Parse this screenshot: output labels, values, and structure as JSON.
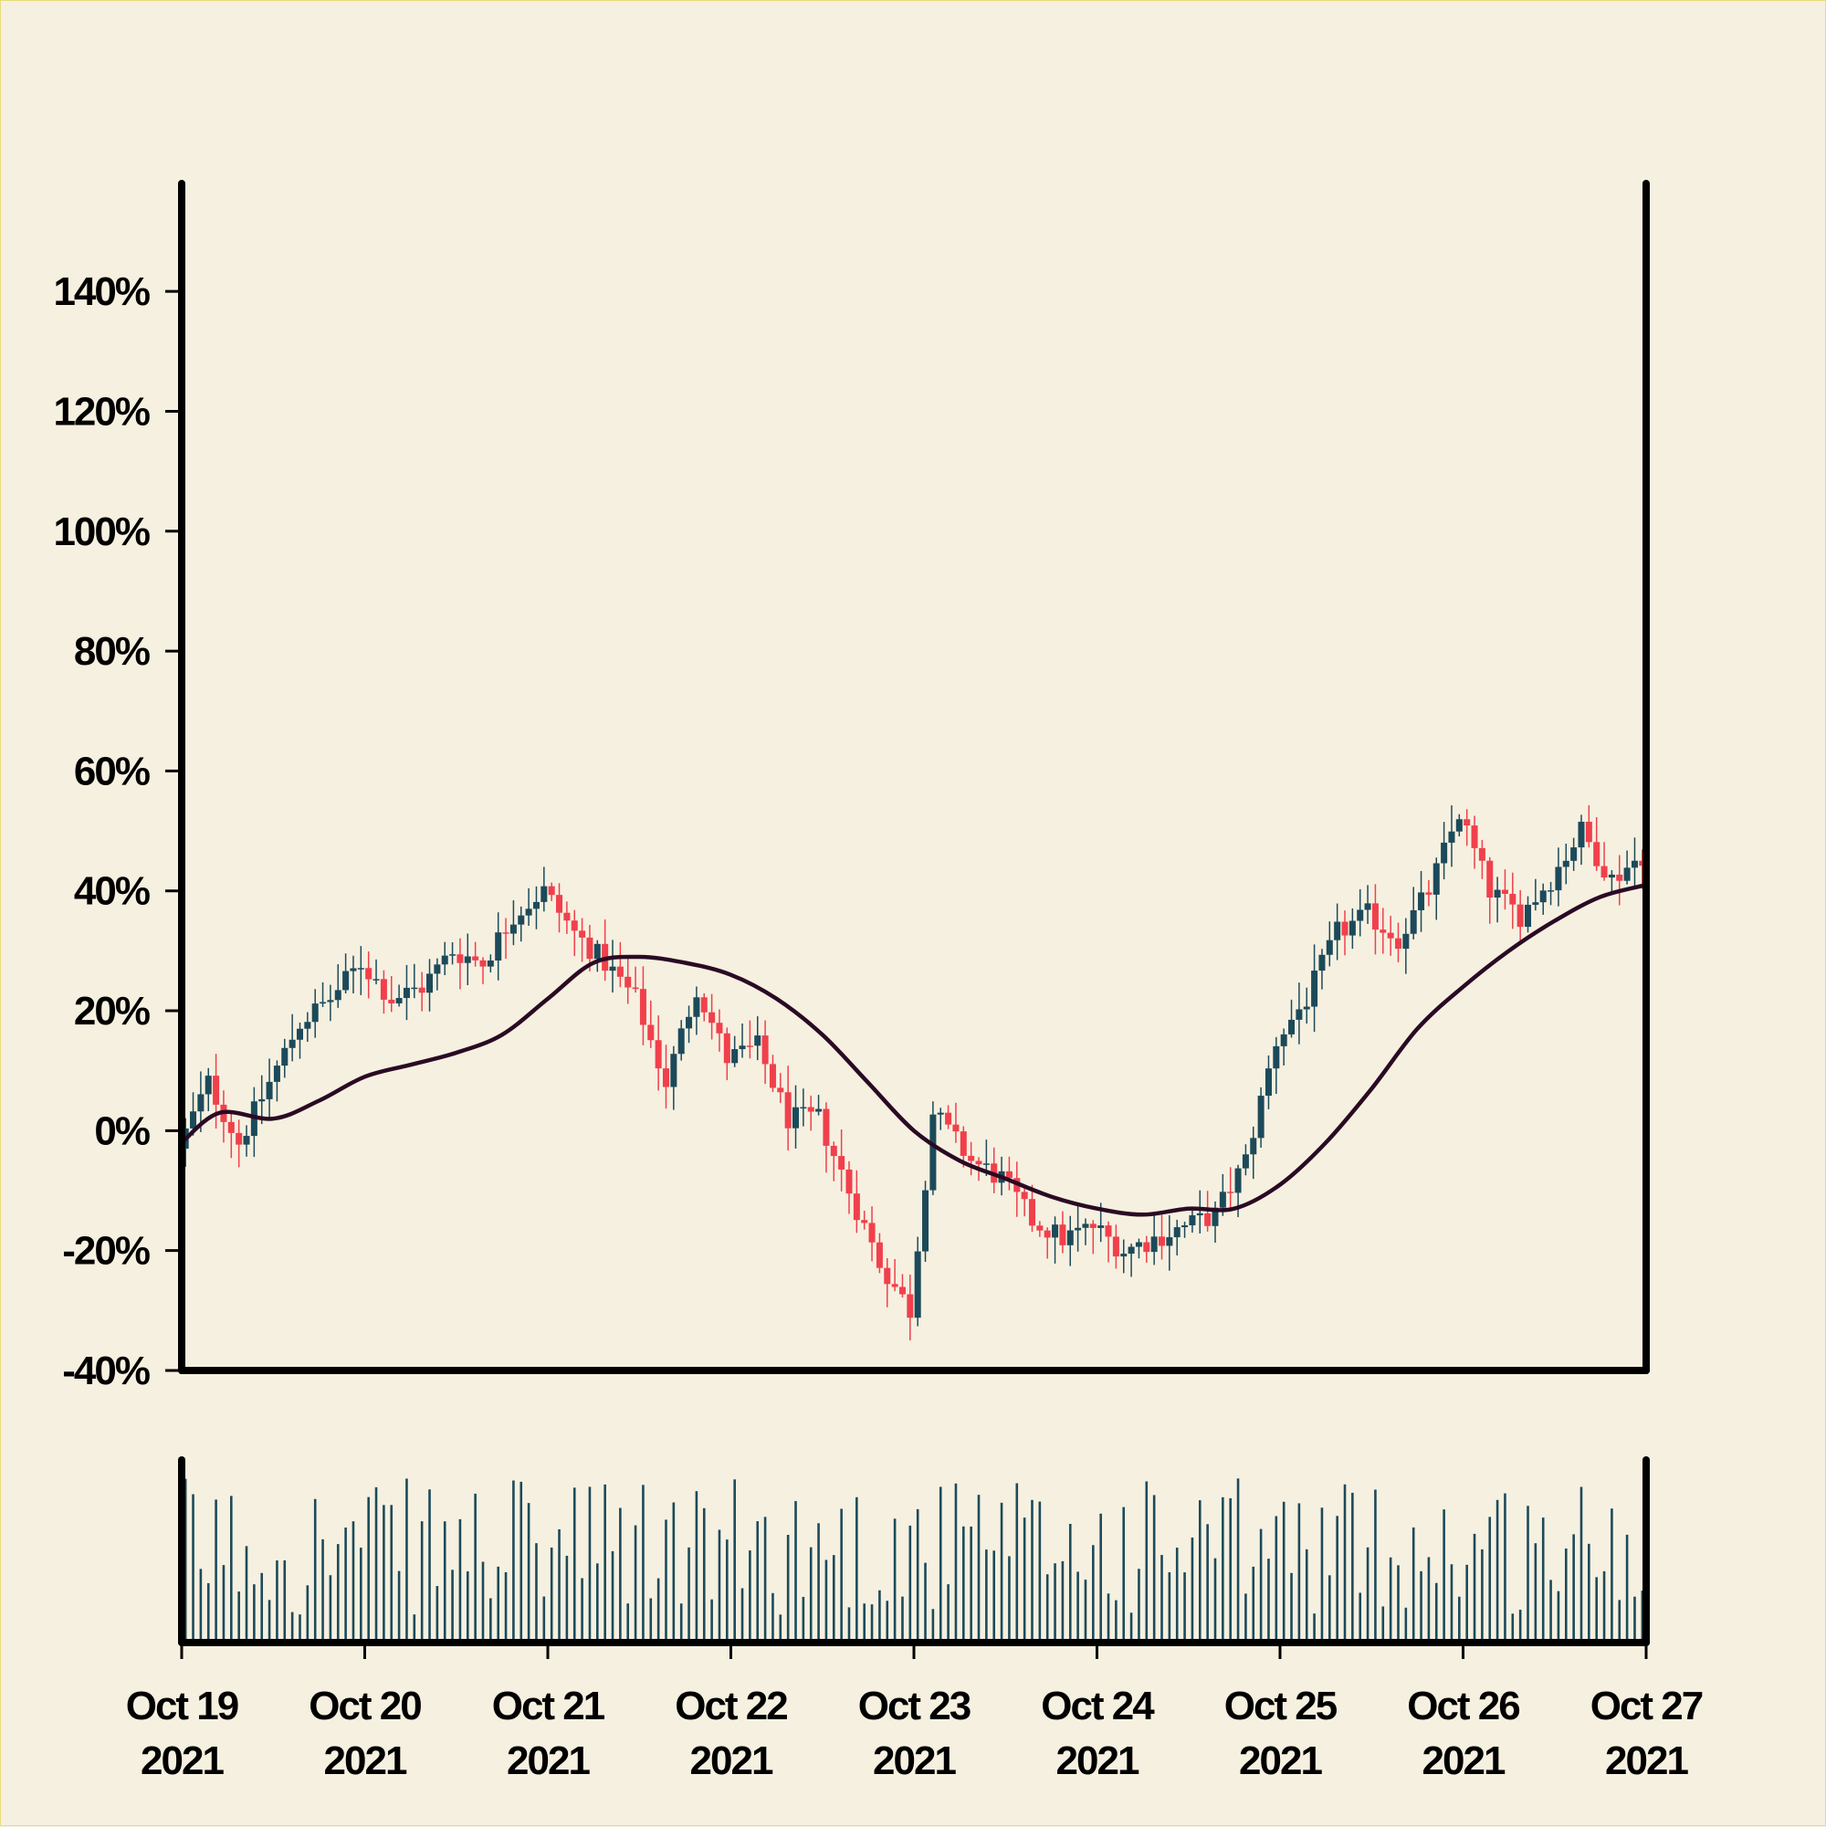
{
  "chart_data": {
    "type": "candlestick",
    "y_unit": "percent change",
    "ylim": [
      -40,
      158
    ],
    "y_ticks": [
      {
        "value": 140,
        "label": "140%"
      },
      {
        "value": 120,
        "label": "120%"
      },
      {
        "value": 100,
        "label": "100%"
      },
      {
        "value": 80,
        "label": "80%"
      },
      {
        "value": 60,
        "label": "60%"
      },
      {
        "value": 40,
        "label": "40%"
      },
      {
        "value": 20,
        "label": "20%"
      },
      {
        "value": 0,
        "label": "0%"
      },
      {
        "value": -20,
        "label": "-20%"
      },
      {
        "value": -40,
        "label": "-40%"
      }
    ],
    "x_range": [
      "2021-10-19",
      "2021-10-27"
    ],
    "x_ticks": [
      {
        "line1": "Oct 19",
        "line2": "2021"
      },
      {
        "line1": "Oct 20",
        "line2": "2021"
      },
      {
        "line1": "Oct 21",
        "line2": "2021"
      },
      {
        "line1": "Oct 22",
        "line2": "2021"
      },
      {
        "line1": "Oct 23",
        "line2": "2021"
      },
      {
        "line1": "Oct 24",
        "line2": "2021"
      },
      {
        "line1": "Oct 25",
        "line2": "2021"
      },
      {
        "line1": "Oct 26",
        "line2": "2021"
      },
      {
        "line1": "Oct 27",
        "line2": "2021"
      }
    ],
    "price_path": [
      {
        "date": "2021-10-19 00:00",
        "value": -3
      },
      {
        "date": "2021-10-19 04:00",
        "value": 8
      },
      {
        "date": "2021-10-19 08:00",
        "value": -2
      },
      {
        "date": "2021-10-19 12:00",
        "value": 8
      },
      {
        "date": "2021-10-19 16:00",
        "value": 18
      },
      {
        "date": "2021-10-19 20:00",
        "value": 22
      },
      {
        "date": "2021-10-20 00:00",
        "value": 28
      },
      {
        "date": "2021-10-20 04:00",
        "value": 22
      },
      {
        "date": "2021-10-20 08:00",
        "value": 24
      },
      {
        "date": "2021-10-20 12:00",
        "value": 30
      },
      {
        "date": "2021-10-20 16:00",
        "value": 28
      },
      {
        "date": "2021-10-20 20:00",
        "value": 36
      },
      {
        "date": "2021-10-21 00:00",
        "value": 40
      },
      {
        "date": "2021-10-21 04:00",
        "value": 33
      },
      {
        "date": "2021-10-21 08:00",
        "value": 28
      },
      {
        "date": "2021-10-21 12:00",
        "value": 22
      },
      {
        "date": "2021-10-21 16:00",
        "value": 8
      },
      {
        "date": "2021-10-21 20:00",
        "value": 24
      },
      {
        "date": "2021-10-22 00:00",
        "value": 12
      },
      {
        "date": "2021-10-22 04:00",
        "value": 14
      },
      {
        "date": "2021-10-22 08:00",
        "value": 2
      },
      {
        "date": "2021-10-22 12:00",
        "value": 2
      },
      {
        "date": "2021-10-22 16:00",
        "value": -10
      },
      {
        "date": "2021-10-22 20:00",
        "value": -22
      },
      {
        "date": "2021-10-23 00:00",
        "value": -30
      },
      {
        "date": "2021-10-23 03:00",
        "value": 3
      },
      {
        "date": "2021-10-23 08:00",
        "value": -5
      },
      {
        "date": "2021-10-23 12:00",
        "value": -8
      },
      {
        "date": "2021-10-23 16:00",
        "value": -15
      },
      {
        "date": "2021-10-23 20:00",
        "value": -18
      },
      {
        "date": "2021-10-24 00:00",
        "value": -16
      },
      {
        "date": "2021-10-24 04:00",
        "value": -20
      },
      {
        "date": "2021-10-24 08:00",
        "value": -18
      },
      {
        "date": "2021-10-24 12:00",
        "value": -16
      },
      {
        "date": "2021-10-24 16:00",
        "value": -14
      },
      {
        "date": "2021-10-24 20:00",
        "value": -5
      },
      {
        "date": "2021-10-25 00:00",
        "value": 15
      },
      {
        "date": "2021-10-25 04:00",
        "value": 22
      },
      {
        "date": "2021-10-25 08:00",
        "value": 33
      },
      {
        "date": "2021-10-25 12:00",
        "value": 36
      },
      {
        "date": "2021-10-25 16:00",
        "value": 32
      },
      {
        "date": "2021-10-25 20:00",
        "value": 40
      },
      {
        "date": "2021-10-26 00:00",
        "value": 53
      },
      {
        "date": "2021-10-26 04:00",
        "value": 40
      },
      {
        "date": "2021-10-26 08:00",
        "value": 36
      },
      {
        "date": "2021-10-26 12:00",
        "value": 42
      },
      {
        "date": "2021-10-26 16:00",
        "value": 50
      },
      {
        "date": "2021-10-26 20:00",
        "value": 42
      },
      {
        "date": "2021-10-27 00:00",
        "value": 46
      }
    ],
    "moving_average": [
      {
        "date": "2021-10-19 00:00",
        "value": -2
      },
      {
        "date": "2021-10-19 05:00",
        "value": 3
      },
      {
        "date": "2021-10-19 12:00",
        "value": 2
      },
      {
        "date": "2021-10-19 18:00",
        "value": 5
      },
      {
        "date": "2021-10-20 00:00",
        "value": 9
      },
      {
        "date": "2021-10-20 06:00",
        "value": 11
      },
      {
        "date": "2021-10-20 12:00",
        "value": 13
      },
      {
        "date": "2021-10-20 18:00",
        "value": 16
      },
      {
        "date": "2021-10-21 00:00",
        "value": 22
      },
      {
        "date": "2021-10-21 06:00",
        "value": 28
      },
      {
        "date": "2021-10-21 12:00",
        "value": 29
      },
      {
        "date": "2021-10-21 18:00",
        "value": 28
      },
      {
        "date": "2021-10-22 00:00",
        "value": 26
      },
      {
        "date": "2021-10-22 06:00",
        "value": 22
      },
      {
        "date": "2021-10-22 12:00",
        "value": 16
      },
      {
        "date": "2021-10-22 18:00",
        "value": 8
      },
      {
        "date": "2021-10-23 00:00",
        "value": 0
      },
      {
        "date": "2021-10-23 06:00",
        "value": -5
      },
      {
        "date": "2021-10-23 12:00",
        "value": -8
      },
      {
        "date": "2021-10-23 18:00",
        "value": -11
      },
      {
        "date": "2021-10-24 00:00",
        "value": -13
      },
      {
        "date": "2021-10-24 06:00",
        "value": -14
      },
      {
        "date": "2021-10-24 12:00",
        "value": -13
      },
      {
        "date": "2021-10-24 18:00",
        "value": -13
      },
      {
        "date": "2021-10-25 00:00",
        "value": -9
      },
      {
        "date": "2021-10-25 06:00",
        "value": -2
      },
      {
        "date": "2021-10-25 12:00",
        "value": 7
      },
      {
        "date": "2021-10-25 18:00",
        "value": 17
      },
      {
        "date": "2021-10-26 00:00",
        "value": 24
      },
      {
        "date": "2021-10-26 06:00",
        "value": 30
      },
      {
        "date": "2021-10-26 12:00",
        "value": 35
      },
      {
        "date": "2021-10-26 18:00",
        "value": 39
      },
      {
        "date": "2021-10-27 00:00",
        "value": 41
      }
    ],
    "candles_per_day": 24,
    "colors": {
      "background": "#f6f0e0",
      "up": "#1c4a5a",
      "down": "#f0404c",
      "moving_average": "#2a0a24",
      "volume": "#1c4a5a",
      "axis": "#000000"
    },
    "grid": false,
    "legend": "none"
  }
}
